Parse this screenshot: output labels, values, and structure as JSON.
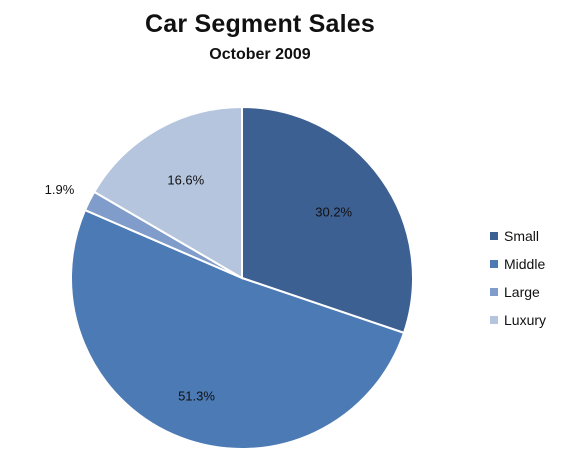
{
  "chart_data": {
    "type": "pie",
    "title": "Car Segment Sales",
    "subtitle": "October 2009",
    "categories": [
      "Small",
      "Middle",
      "Large",
      "Luxury"
    ],
    "values": [
      30.2,
      51.3,
      1.9,
      16.6
    ],
    "labels": [
      "30.2%",
      "51.3%",
      "1.9%",
      "16.6%"
    ],
    "colors": [
      "#3d6092",
      "#4c7ab4",
      "#7f9ccb",
      "#b5c5de"
    ],
    "start_angle": "12 o'clock",
    "direction": "clockwise",
    "legend_position": "right"
  }
}
